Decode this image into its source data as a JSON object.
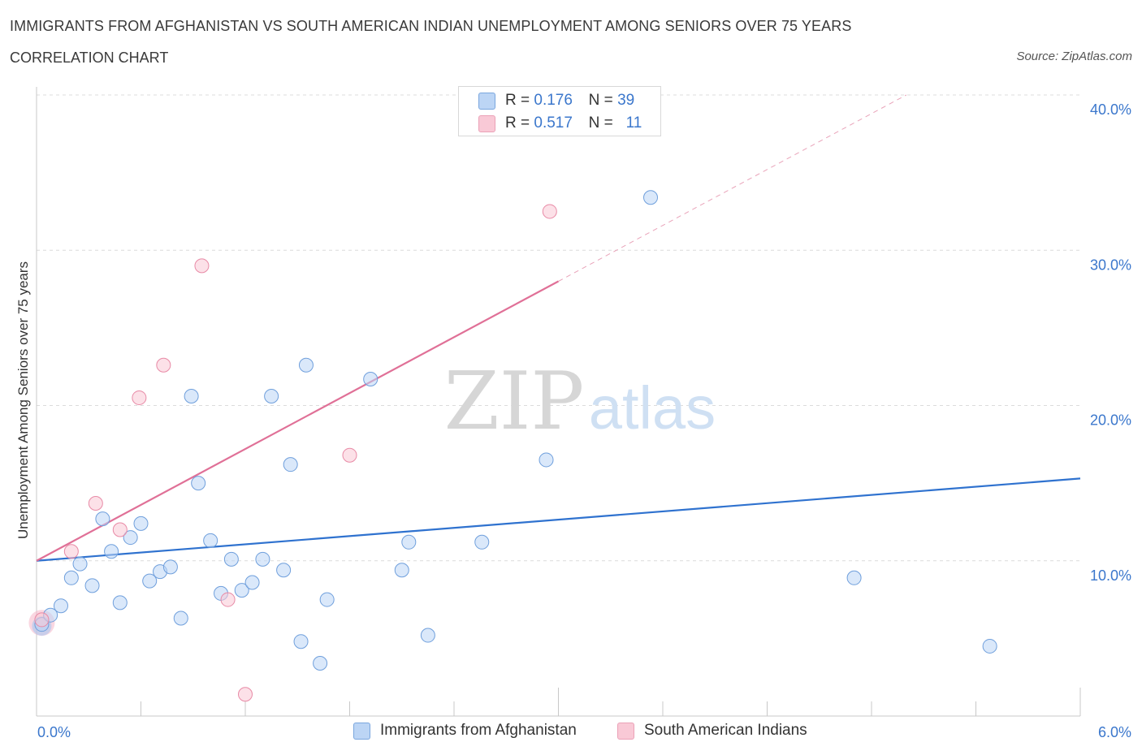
{
  "header": {
    "title": "IMMIGRANTS FROM AFGHANISTAN VS SOUTH AMERICAN INDIAN UNEMPLOYMENT AMONG SENIORS OVER 75 YEARS",
    "subtitle": "CORRELATION CHART",
    "source": "Source: ZipAtlas.com"
  },
  "watermark": {
    "zip": "ZIP",
    "atlas": "atlas"
  },
  "legend_box": {
    "rows": [
      {
        "r_label": "R =",
        "r_value": "0.176",
        "n_label": "N =",
        "n_value": "39",
        "color": "#a8c8f0"
      },
      {
        "r_label": "R =",
        "r_value": "0.517",
        "n_label": "N =",
        "n_value": "11",
        "color": "#f6b6c8"
      }
    ]
  },
  "chart_data": {
    "type": "scatter",
    "xlabel": "",
    "ylabel": "Unemployment Among Seniors over 75 years",
    "xlim": [
      0,
      6
    ],
    "ylim": [
      0,
      40
    ],
    "x_tick_labels": [
      "0.0%",
      "6.0%"
    ],
    "y_tick_labels": [
      "10.0%",
      "20.0%",
      "30.0%",
      "40.0%"
    ],
    "y_ticks": [
      10,
      20,
      30,
      40
    ],
    "grid": true,
    "legend_position": "bottom-center",
    "series": [
      {
        "name": "Immigrants from Afghanistan",
        "color": "#a8c8f0",
        "stroke": "#6f9fdc",
        "points": [
          [
            0.03,
            5.9
          ],
          [
            0.08,
            6.5
          ],
          [
            0.14,
            7.1
          ],
          [
            0.2,
            8.9
          ],
          [
            0.25,
            9.8
          ],
          [
            0.32,
            8.4
          ],
          [
            0.38,
            12.7
          ],
          [
            0.43,
            10.6
          ],
          [
            0.48,
            7.3
          ],
          [
            0.54,
            11.5
          ],
          [
            0.6,
            12.4
          ],
          [
            0.65,
            8.7
          ],
          [
            0.71,
            9.3
          ],
          [
            0.77,
            9.6
          ],
          [
            0.83,
            6.3
          ],
          [
            0.89,
            20.6
          ],
          [
            0.93,
            15.0
          ],
          [
            1.0,
            11.3
          ],
          [
            1.06,
            7.9
          ],
          [
            1.12,
            10.1
          ],
          [
            1.18,
            8.1
          ],
          [
            1.24,
            8.6
          ],
          [
            1.3,
            10.1
          ],
          [
            1.35,
            20.6
          ],
          [
            1.42,
            9.4
          ],
          [
            1.46,
            16.2
          ],
          [
            1.52,
            4.8
          ],
          [
            1.55,
            22.6
          ],
          [
            1.63,
            3.4
          ],
          [
            1.67,
            7.5
          ],
          [
            1.92,
            21.7
          ],
          [
            2.1,
            9.4
          ],
          [
            2.14,
            11.2
          ],
          [
            2.25,
            5.2
          ],
          [
            2.56,
            11.2
          ],
          [
            2.93,
            16.5
          ],
          [
            3.53,
            33.4
          ],
          [
            4.7,
            8.9
          ],
          [
            5.48,
            4.5
          ]
        ],
        "trend": {
          "x": [
            0,
            6
          ],
          "y": [
            10.0,
            15.3
          ]
        }
      },
      {
        "name": "South American Indians",
        "color": "#f6b6c8",
        "stroke": "#e88aa6",
        "points": [
          [
            0.03,
            6.2
          ],
          [
            0.2,
            10.6
          ],
          [
            0.34,
            13.7
          ],
          [
            0.48,
            12.0
          ],
          [
            0.59,
            20.5
          ],
          [
            0.73,
            22.6
          ],
          [
            0.95,
            29.0
          ],
          [
            1.1,
            7.5
          ],
          [
            1.2,
            1.4
          ],
          [
            1.8,
            16.8
          ],
          [
            2.95,
            32.5
          ]
        ],
        "trend": {
          "x": [
            0,
            3.0
          ],
          "y": [
            10.0,
            28.0
          ]
        },
        "trend_extension": {
          "x": [
            3.0,
            5.0
          ],
          "y": [
            28.0,
            40.0
          ]
        }
      }
    ]
  }
}
